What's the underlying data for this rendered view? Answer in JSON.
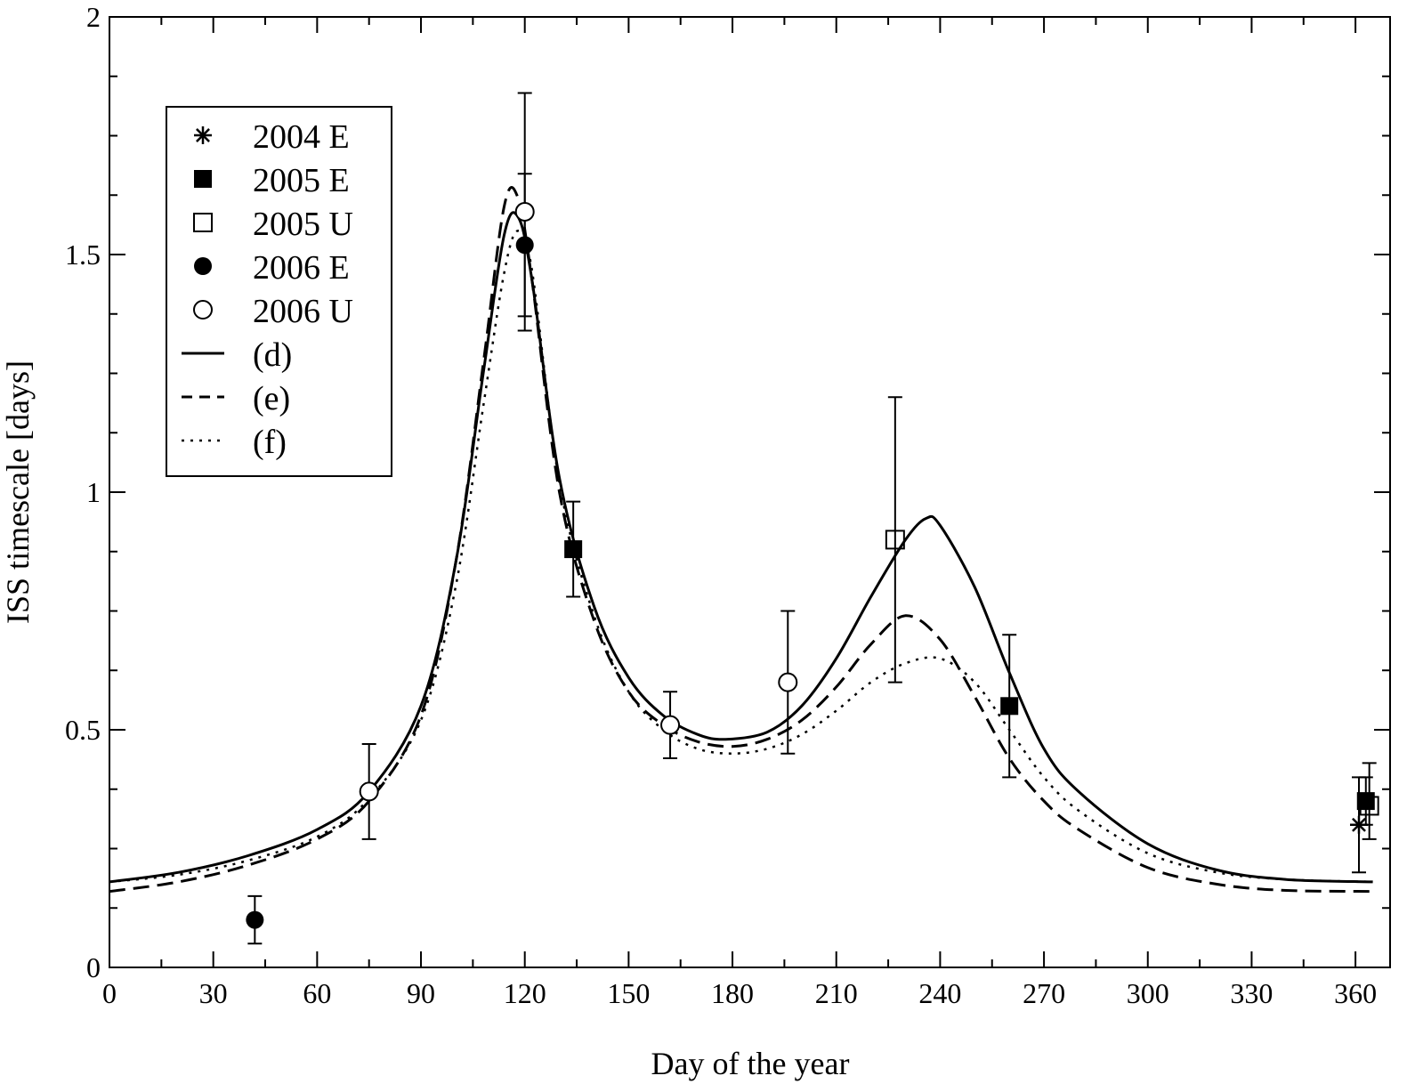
{
  "chart_data": {
    "type": "scatter",
    "title": "",
    "xlabel": "Day of the year",
    "ylabel": "ISS timescale [days]",
    "xlim": [
      0,
      370
    ],
    "ylim": [
      0,
      2
    ],
    "grid": false,
    "legend_position": "top-left",
    "x_ticks": [
      0,
      30,
      60,
      90,
      120,
      150,
      180,
      210,
      240,
      270,
      300,
      330,
      360
    ],
    "x_tick_labels": [
      "0",
      "30",
      "60",
      "90",
      "120",
      "150",
      "180",
      "210",
      "240",
      "270",
      "300",
      "330",
      "360"
    ],
    "y_ticks": [
      0,
      0.5,
      1,
      1.5,
      2
    ],
    "y_tick_labels": [
      "0",
      "0.5",
      "1",
      "1.5",
      "2"
    ],
    "points": [
      {
        "name": "2004 E",
        "marker": "asterisk",
        "data": [
          {
            "x": 361,
            "y": 0.3,
            "yerr_low": 0.2,
            "yerr_high": 0.4
          }
        ]
      },
      {
        "name": "2005 E",
        "marker": "filled-square",
        "data": [
          {
            "x": 134,
            "y": 0.88,
            "yerr_low": 0.78,
            "yerr_high": 0.98
          },
          {
            "x": 260,
            "y": 0.55,
            "yerr_low": 0.4,
            "yerr_high": 0.7
          },
          {
            "x": 363,
            "y": 0.35,
            "yerr_low": 0.3,
            "yerr_high": 0.4
          }
        ]
      },
      {
        "name": "2005 U",
        "marker": "open-square",
        "data": [
          {
            "x": 227,
            "y": 0.9,
            "yerr_low": 0.6,
            "yerr_high": 1.2
          },
          {
            "x": 364,
            "y": 0.34,
            "yerr_low": 0.27,
            "yerr_high": 0.43
          }
        ]
      },
      {
        "name": "2006 E",
        "marker": "filled-circle",
        "data": [
          {
            "x": 42,
            "y": 0.1,
            "yerr_low": 0.05,
            "yerr_high": 0.15
          },
          {
            "x": 120,
            "y": 1.52,
            "yerr_low": 1.37,
            "yerr_high": 1.67
          }
        ]
      },
      {
        "name": "2006 U",
        "marker": "open-circle",
        "data": [
          {
            "x": 75,
            "y": 0.37,
            "yerr_low": 0.27,
            "yerr_high": 0.47
          },
          {
            "x": 120,
            "y": 1.59,
            "yerr_low": 1.34,
            "yerr_high": 1.84
          },
          {
            "x": 162,
            "y": 0.51,
            "yerr_low": 0.44,
            "yerr_high": 0.58
          },
          {
            "x": 196,
            "y": 0.6,
            "yerr_low": 0.45,
            "yerr_high": 0.75
          }
        ]
      }
    ],
    "curves": [
      {
        "name": "(d)",
        "style": "solid",
        "x": [
          0,
          20,
          40,
          60,
          75,
          90,
          100,
          108,
          114,
          118,
          122,
          130,
          140,
          150,
          160,
          170,
          178,
          190,
          200,
          210,
          220,
          230,
          236,
          240,
          250,
          260,
          270,
          280,
          300,
          320,
          340,
          365
        ],
        "y": [
          0.18,
          0.2,
          0.235,
          0.29,
          0.37,
          0.55,
          0.85,
          1.25,
          1.54,
          1.58,
          1.45,
          1.03,
          0.76,
          0.61,
          0.53,
          0.49,
          0.48,
          0.495,
          0.55,
          0.65,
          0.78,
          0.9,
          0.945,
          0.93,
          0.8,
          0.62,
          0.46,
          0.37,
          0.26,
          0.205,
          0.185,
          0.18
        ]
      },
      {
        "name": "(e)",
        "style": "dashed",
        "x": [
          0,
          20,
          40,
          60,
          75,
          90,
          100,
          108,
          114,
          118,
          122,
          130,
          140,
          150,
          160,
          170,
          180,
          190,
          200,
          210,
          220,
          230,
          240,
          250,
          260,
          270,
          280,
          300,
          320,
          340,
          365
        ],
        "y": [
          0.16,
          0.18,
          0.215,
          0.27,
          0.35,
          0.53,
          0.85,
          1.27,
          1.6,
          1.62,
          1.45,
          1.0,
          0.73,
          0.58,
          0.51,
          0.475,
          0.465,
          0.48,
          0.52,
          0.59,
          0.68,
          0.74,
          0.69,
          0.57,
          0.44,
          0.35,
          0.29,
          0.21,
          0.175,
          0.162,
          0.16
        ]
      },
      {
        "name": "(f)",
        "style": "dotted",
        "x": [
          0,
          20,
          40,
          60,
          75,
          90,
          100,
          108,
          114,
          118,
          122,
          130,
          140,
          150,
          160,
          170,
          180,
          190,
          200,
          210,
          220,
          230,
          240,
          250,
          260,
          270,
          280,
          300,
          320,
          340,
          365
        ],
        "y": [
          0.18,
          0.195,
          0.225,
          0.275,
          0.355,
          0.52,
          0.8,
          1.18,
          1.46,
          1.55,
          1.47,
          1.02,
          0.74,
          0.58,
          0.5,
          0.46,
          0.45,
          0.46,
          0.49,
          0.54,
          0.6,
          0.64,
          0.65,
          0.6,
          0.5,
          0.4,
          0.33,
          0.24,
          0.2,
          0.185,
          0.18
        ]
      }
    ],
    "legend": {
      "entries": [
        {
          "label": "2004 E",
          "symbol": "asterisk"
        },
        {
          "label": "2005 E",
          "symbol": "filled-square"
        },
        {
          "label": "2005 U",
          "symbol": "open-square"
        },
        {
          "label": "2006 E",
          "symbol": "filled-circle"
        },
        {
          "label": "2006 U",
          "symbol": "open-circle"
        },
        {
          "label": "(d)",
          "symbol": "solid"
        },
        {
          "label": "(e)",
          "symbol": "dashed"
        },
        {
          "label": "(f)",
          "symbol": "dotted"
        }
      ]
    }
  }
}
